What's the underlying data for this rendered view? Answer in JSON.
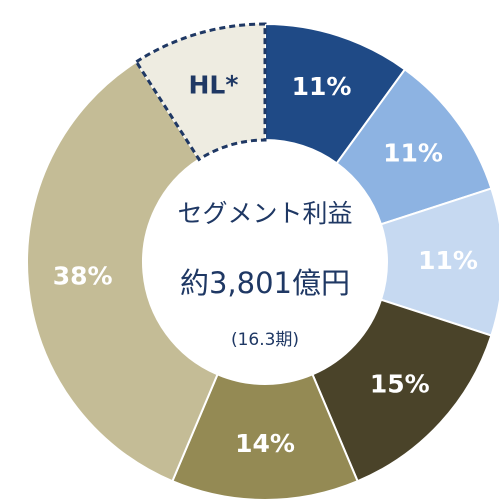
{
  "chart_data": {
    "type": "donut",
    "categories": [
      null,
      null,
      null,
      null,
      null,
      null,
      "HL*"
    ],
    "values": [
      11,
      11,
      11,
      15,
      14,
      38,
      10
    ],
    "value_labels": [
      "11%",
      "11%",
      "11%",
      "15%",
      "14%",
      "38%",
      null
    ],
    "colors": [
      "#1f4a86",
      "#8db3e2",
      "#c6d9f1",
      "#4a4329",
      "#948a54",
      "#c4bc96",
      "#eeece1"
    ],
    "label_colors": [
      "#ffffff",
      "#ffffff",
      "#ffffff",
      "#ffffff",
      "#ffffff",
      "#ffffff",
      "#1f3864"
    ],
    "dashed": [
      false,
      false,
      false,
      false,
      false,
      false,
      true
    ],
    "center_text": [
      "セグメント利益",
      "約3,801億円",
      "(16.3期)"
    ]
  }
}
